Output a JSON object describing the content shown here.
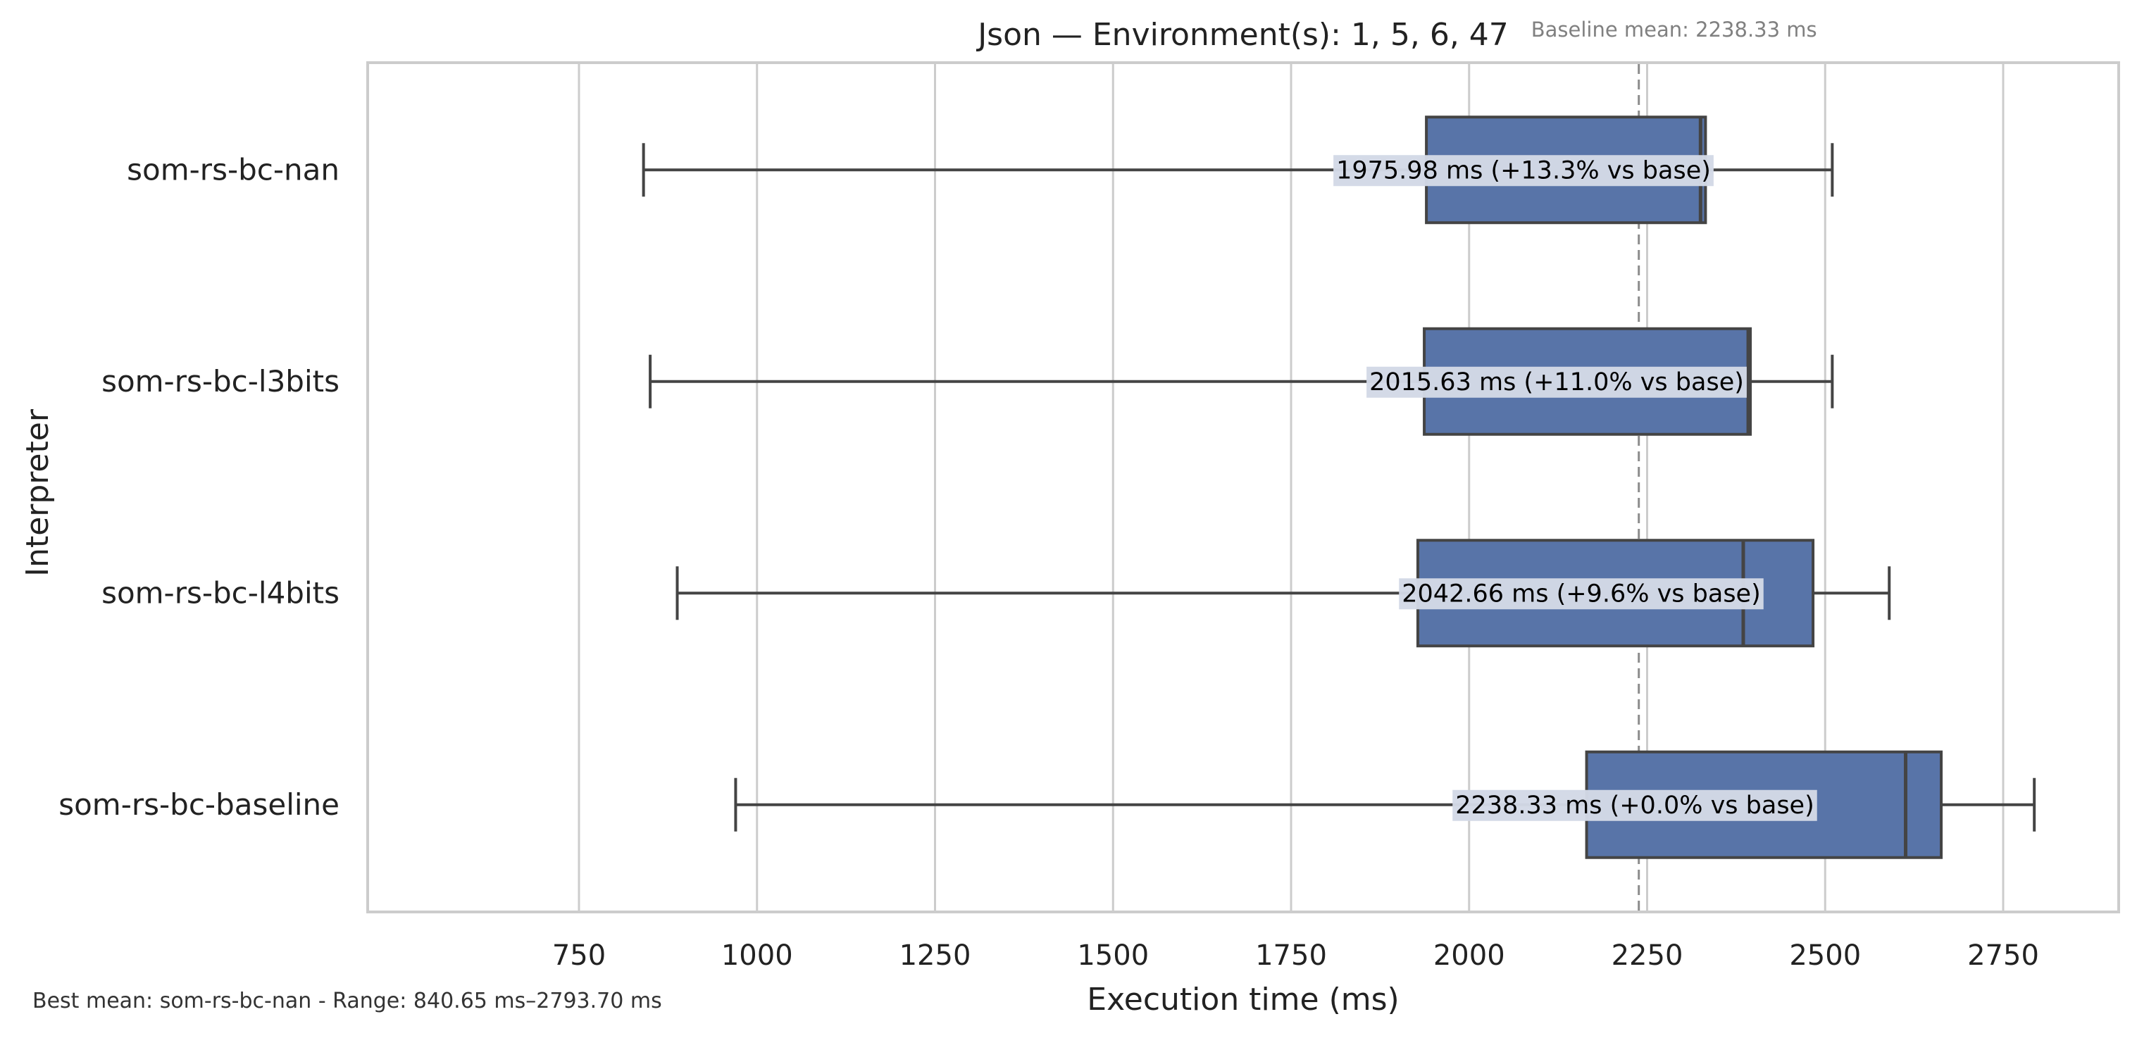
{
  "chart_data": {
    "type": "boxplot",
    "orientation": "horizontal",
    "title": "Json — Environment(s): 1, 5, 6, 47",
    "xlabel": "Execution time (ms)",
    "ylabel": "Interpreter",
    "xlim": [
      740,
      2900
    ],
    "xticks": [
      750,
      1000,
      1250,
      1500,
      1750,
      2000,
      2250,
      2500,
      2750
    ],
    "grid": "vertical",
    "categories": [
      "som-rs-bc-nan",
      "som-rs-bc-l3bits",
      "som-rs-bc-l4bits",
      "som-rs-bc-baseline"
    ],
    "boxes": [
      {
        "name": "som-rs-bc-nan",
        "min": 840.65,
        "q1": 1940,
        "median": 2325,
        "q3": 2332,
        "max": 2510,
        "mean_label": "1975.98 ms  (+13.3% vs base)"
      },
      {
        "name": "som-rs-bc-l3bits",
        "min": 850,
        "q1": 1937,
        "median": 2392,
        "q3": 2395,
        "max": 2510,
        "mean_label": "2015.63 ms  (+11.0% vs base)"
      },
      {
        "name": "som-rs-bc-l4bits",
        "min": 888,
        "q1": 1928,
        "median": 2385,
        "q3": 2483,
        "max": 2590,
        "mean_label": "2042.66 ms  (+9.6% vs base)"
      },
      {
        "name": "som-rs-bc-baseline",
        "min": 970,
        "q1": 2165,
        "median": 2613,
        "q3": 2663,
        "max": 2793.7,
        "mean_label": "2238.33 ms  (+0.0% vs base)"
      }
    ],
    "reference_line": {
      "value": 2238.33,
      "label": "Baseline mean: 2238.33 ms"
    },
    "colors": {
      "box": "#5874a8",
      "edge": "#444444",
      "grid": "#cccccc",
      "reference": "#8c8c8c",
      "label_bg": "#d3d9e6"
    }
  },
  "footnote": "Best mean: som-rs-bc-nan - Range: 840.65 ms–2793.70 ms"
}
